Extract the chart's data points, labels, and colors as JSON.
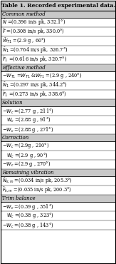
{
  "title": "Table 1. Recorded experimental data.",
  "sections": [
    {
      "header": "Common method",
      "rows": [
        {
          "text": "$\\bar{N}$ =(0.396 in/s pk, 332.1°)",
          "indent": false
        },
        {
          "text": "$\\bar{F}$ =(0.308 in/s pk, 330.0°)",
          "indent": false
        },
        {
          "text": "$\\bar{W}_{T1}$ =(2.9 g , 60°)",
          "indent": false
        },
        {
          "text": "$\\bar{N}_1$ =(0.764 in/s pk, 326.7°)",
          "indent": false
        },
        {
          "text": "$\\bar{F}_1$ =(0.616 in/s pk, 320.7°)",
          "indent": false
        }
      ]
    },
    {
      "header": "Effective method",
      "rows": [
        {
          "text": "$-W_{T1}$ =$W_{T1}$ &$W_{T1}$ =(2.9 g , 240°)",
          "indent": false
        },
        {
          "text": "$\\bar{N}_1$ =(0.297 in/s pk, 344.2°)",
          "indent": false
        },
        {
          "text": "$\\bar{F}_1$ =(0.273 in/s pk, 338.6°)",
          "indent": false
        }
      ]
    },
    {
      "header": "Solution",
      "rows": [
        {
          "text": "$-W_c$ =(2.77 g , 211°)",
          "indent": false
        },
        {
          "text": "$W_c$ =(2.88 g , 91°)",
          "indent": true
        },
        {
          "text": "$-W_c$ =(2.88 g , 271°)",
          "indent": false
        }
      ]
    },
    {
      "header": "Correction",
      "rows": [
        {
          "text": "$-W_c$ =(2.9g , 210°)",
          "indent": false
        },
        {
          "text": "$W_c$ =(2.9 g , 90°)",
          "indent": true
        },
        {
          "text": "$-W_c$ =(2.9 g , 270°)",
          "indent": false
        }
      ]
    },
    {
      "header": "Remaining vibration",
      "rows": [
        {
          "text": "$\\bar{N}_{k,m}$ =(0.034 in/s pk, 205.3°)",
          "indent": false
        },
        {
          "text": "$\\bar{F}_{k,m}$ =(0.035 in/s pk, 200.3°)",
          "indent": false
        }
      ]
    },
    {
      "header": "Trim balance",
      "rows": [
        {
          "text": "$-W_c$ =(0.39 g , 351°)",
          "indent": false
        },
        {
          "text": "$W_c$ =(0.38 g , 323°)",
          "indent": true
        },
        {
          "text": "$-W_c$ =(0.38 g , 143°)",
          "indent": false
        }
      ]
    }
  ],
  "bg_color": "#ffffff",
  "header_bg": "#c8c8c8",
  "border_color": "#000000",
  "title_fontsize": 5.5,
  "header_fontsize": 5.0,
  "row_fontsize": 4.8,
  "fig_width": 1.63,
  "fig_height": 3.7,
  "dpi": 100
}
